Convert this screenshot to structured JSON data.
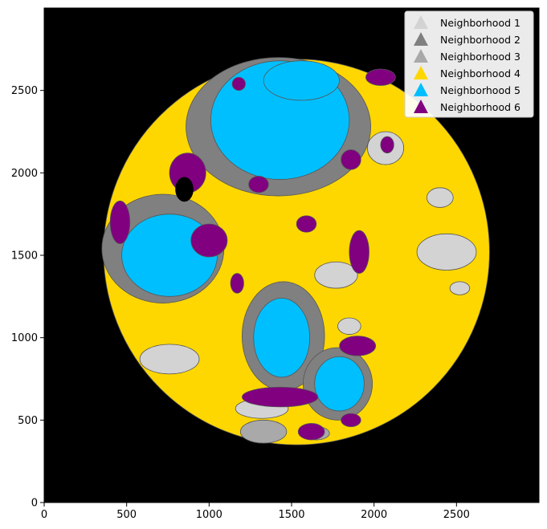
{
  "chart_data": {
    "type": "heatmap",
    "title": "",
    "xlabel": "",
    "ylabel": "",
    "xlim": [
      0,
      3000
    ],
    "ylim": [
      0,
      3000
    ],
    "xticks": [
      0,
      500,
      1000,
      1500,
      2000,
      2500
    ],
    "yticks": [
      0,
      500,
      1000,
      1500,
      2000,
      2500
    ],
    "background_color": "#000000",
    "grid": false,
    "legend_position": "top-right",
    "legend": [
      {
        "name": "Neighborhood 1",
        "color": "#d3d3d3",
        "marker": "triangle"
      },
      {
        "name": "Neighborhood 2",
        "color": "#808080",
        "marker": "triangle"
      },
      {
        "name": "Neighborhood 3",
        "color": "#a9a9a9",
        "marker": "triangle"
      },
      {
        "name": "Neighborhood 4",
        "color": "#ffd700",
        "marker": "triangle"
      },
      {
        "name": "Neighborhood 5",
        "color": "#00bfff",
        "marker": "triangle"
      },
      {
        "name": "Neighborhood 6",
        "color": "#800080",
        "marker": "triangle"
      }
    ],
    "tissue": {
      "center": [
        1530,
        1520
      ],
      "radius": 1170
    },
    "regions": [
      {
        "neighborhood": "Neighborhood 4",
        "type": "circle",
        "center": [
          1530,
          1520
        ],
        "radius": 1170
      },
      {
        "neighborhood": "Neighborhood 2",
        "type": "ellipse",
        "center": [
          1420,
          2280
        ],
        "rx": 560,
        "ry": 420
      },
      {
        "neighborhood": "Neighborhood 5",
        "type": "ellipse",
        "center": [
          1430,
          2320
        ],
        "rx": 420,
        "ry": 360
      },
      {
        "neighborhood": "Neighborhood 5",
        "type": "ellipse",
        "center": [
          1560,
          2560
        ],
        "rx": 230,
        "ry": 120
      },
      {
        "neighborhood": "Neighborhood 6",
        "type": "ellipse",
        "center": [
          1300,
          1930
        ],
        "rx": 60,
        "ry": 50
      },
      {
        "neighborhood": "Neighborhood 2",
        "type": "ellipse",
        "center": [
          720,
          1540
        ],
        "rx": 370,
        "ry": 330
      },
      {
        "neighborhood": "Neighborhood 5",
        "type": "ellipse",
        "center": [
          760,
          1500
        ],
        "rx": 290,
        "ry": 250
      },
      {
        "neighborhood": "Neighborhood 2",
        "type": "ellipse",
        "center": [
          1450,
          1010
        ],
        "rx": 250,
        "ry": 330
      },
      {
        "neighborhood": "Neighborhood 5",
        "type": "ellipse",
        "center": [
          1440,
          1000
        ],
        "rx": 170,
        "ry": 240
      },
      {
        "neighborhood": "Neighborhood 2",
        "type": "ellipse",
        "center": [
          1780,
          720
        ],
        "rx": 210,
        "ry": 220
      },
      {
        "neighborhood": "Neighborhood 5",
        "type": "ellipse",
        "center": [
          1790,
          720
        ],
        "rx": 150,
        "ry": 165
      },
      {
        "neighborhood": "Neighborhood 1",
        "type": "ellipse",
        "center": [
          760,
          870
        ],
        "rx": 180,
        "ry": 90
      },
      {
        "neighborhood": "Neighborhood 1",
        "type": "ellipse",
        "center": [
          2440,
          1520
        ],
        "rx": 180,
        "ry": 110
      },
      {
        "neighborhood": "Neighborhood 1",
        "type": "ellipse",
        "center": [
          2070,
          2150
        ],
        "rx": 110,
        "ry": 100
      },
      {
        "neighborhood": "Neighborhood 1",
        "type": "ellipse",
        "center": [
          1770,
          1380
        ],
        "rx": 130,
        "ry": 80
      },
      {
        "neighborhood": "Neighborhood 1",
        "type": "ellipse",
        "center": [
          2400,
          1850
        ],
        "rx": 80,
        "ry": 60
      },
      {
        "neighborhood": "Neighborhood 1",
        "type": "ellipse",
        "center": [
          1320,
          570
        ],
        "rx": 160,
        "ry": 60
      },
      {
        "neighborhood": "Neighborhood 1",
        "type": "ellipse",
        "center": [
          1850,
          1070
        ],
        "rx": 70,
        "ry": 50
      },
      {
        "neighborhood": "Neighborhood 1",
        "type": "ellipse",
        "center": [
          2520,
          1300
        ],
        "rx": 60,
        "ry": 40
      },
      {
        "neighborhood": "Neighborhood 3",
        "type": "ellipse",
        "center": [
          1330,
          430
        ],
        "rx": 140,
        "ry": 70
      },
      {
        "neighborhood": "Neighborhood 3",
        "type": "ellipse",
        "center": [
          1650,
          420
        ],
        "rx": 80,
        "ry": 40
      },
      {
        "neighborhood": "Neighborhood 6",
        "type": "ellipse",
        "center": [
          1430,
          640
        ],
        "rx": 230,
        "ry": 60
      },
      {
        "neighborhood": "Neighborhood 6",
        "type": "ellipse",
        "center": [
          1620,
          430
        ],
        "rx": 80,
        "ry": 50
      },
      {
        "neighborhood": "Neighborhood 6",
        "type": "ellipse",
        "center": [
          1860,
          500
        ],
        "rx": 60,
        "ry": 40
      },
      {
        "neighborhood": "Neighborhood 6",
        "type": "ellipse",
        "center": [
          1910,
          1520
        ],
        "rx": 60,
        "ry": 130
      },
      {
        "neighborhood": "Neighborhood 6",
        "type": "ellipse",
        "center": [
          1900,
          950
        ],
        "rx": 110,
        "ry": 60
      },
      {
        "neighborhood": "Neighborhood 6",
        "type": "ellipse",
        "center": [
          1000,
          1590
        ],
        "rx": 110,
        "ry": 100
      },
      {
        "neighborhood": "Neighborhood 6",
        "type": "ellipse",
        "center": [
          870,
          2000
        ],
        "rx": 110,
        "ry": 120
      },
      {
        "neighborhood": "Neighborhood 6",
        "type": "ellipse",
        "center": [
          460,
          1700
        ],
        "rx": 60,
        "ry": 130
      },
      {
        "neighborhood": "Neighborhood 6",
        "type": "ellipse",
        "center": [
          2040,
          2580
        ],
        "rx": 90,
        "ry": 50
      },
      {
        "neighborhood": "Neighborhood 6",
        "type": "ellipse",
        "center": [
          1860,
          2080
        ],
        "rx": 60,
        "ry": 60
      },
      {
        "neighborhood": "Neighborhood 6",
        "type": "ellipse",
        "center": [
          1180,
          2540
        ],
        "rx": 40,
        "ry": 40
      },
      {
        "neighborhood": "Neighborhood 6",
        "type": "ellipse",
        "center": [
          1170,
          1330
        ],
        "rx": 40,
        "ry": 60
      },
      {
        "neighborhood": "Neighborhood 6",
        "type": "ellipse",
        "center": [
          1590,
          1690
        ],
        "rx": 60,
        "ry": 50
      },
      {
        "neighborhood": "Neighborhood 6",
        "type": "ellipse",
        "center": [
          2080,
          2170
        ],
        "rx": 40,
        "ry": 50
      }
    ],
    "holes": [
      {
        "type": "ellipse",
        "center": [
          850,
          1900
        ],
        "rx": 55,
        "ry": 75
      }
    ]
  }
}
